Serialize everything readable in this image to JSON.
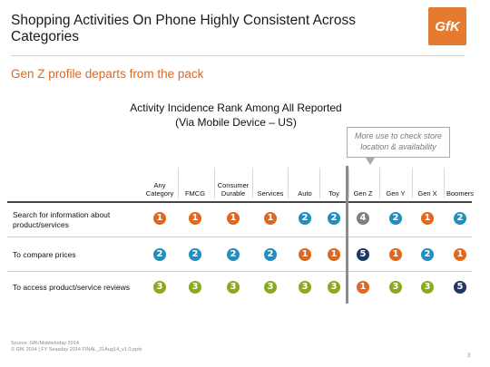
{
  "slide": {
    "title": "Shopping Activities On Phone Highly Consistent Across Categories",
    "subtitle": "Gen Z profile departs from the pack",
    "logo_text": "GfK",
    "chart_title_line1": "Activity Incidence Rank Among All Reported",
    "chart_title_line2": "(Via Mobile Device – US)",
    "callout": "More use to check store location & availability",
    "footer_line1": "Source: GfK/Mobiletoday 2014",
    "footer_line2": "© GfK 2014 | FY Seasday 2014 FINAL_21Aug14_v1.0.pptx",
    "page_number": "3"
  },
  "columns": [
    "Any Category",
    "FMCG",
    "Consumer Durable",
    "Services",
    "Auto",
    "Toy",
    "Gen Z",
    "Gen Y",
    "Gen X",
    "Boomers"
  ],
  "rows": [
    {
      "label": "Search for information about product/services",
      "ranks": [
        1,
        1,
        1,
        1,
        2,
        2,
        4,
        2,
        1,
        2
      ]
    },
    {
      "label": "To compare prices",
      "ranks": [
        2,
        2,
        2,
        2,
        1,
        1,
        5,
        1,
        2,
        1
      ]
    },
    {
      "label": "To access product/service reviews",
      "ranks": [
        3,
        3,
        3,
        3,
        3,
        3,
        1,
        3,
        3,
        5
      ]
    }
  ],
  "rank_colors": {
    "1": "#e2661b",
    "2": "#1f8fc0",
    "3": "#8aaa1e",
    "4": "#7f7f7f",
    "5": "#1f3766"
  }
}
